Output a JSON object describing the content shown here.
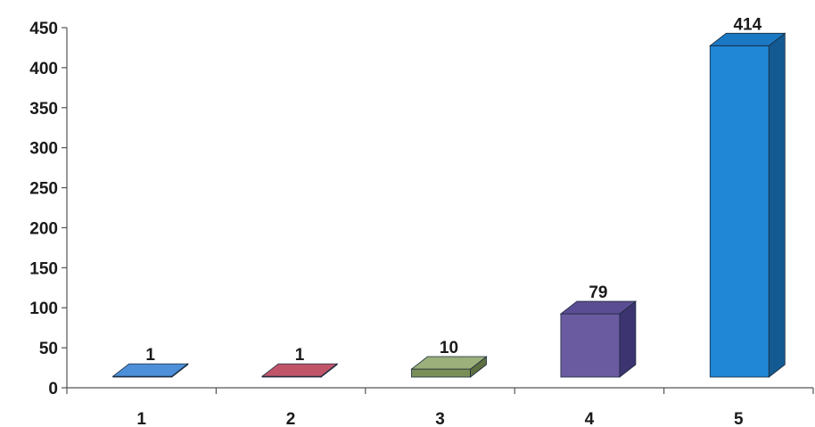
{
  "chart_data": {
    "type": "bar",
    "categories": [
      "1",
      "2",
      "3",
      "4",
      "5"
    ],
    "values": [
      1,
      1,
      10,
      79,
      414
    ],
    "data_labels": [
      "1",
      "1",
      "10",
      "79",
      "414"
    ],
    "y_ticks": [
      "0",
      "50",
      "100",
      "150",
      "200",
      "250",
      "300",
      "350",
      "400",
      "450"
    ],
    "ylim": [
      0,
      450
    ],
    "title": "",
    "xlabel": "",
    "ylabel": "",
    "grid": false,
    "legend": "none",
    "bar_colors": [
      "#2f6db8",
      "#a23a4f",
      "#7a8f58",
      "#6a5aa0",
      "#1f87d6"
    ],
    "bar_top_colors": [
      "#4d8fd8",
      "#c0556a",
      "#9bb07a",
      "#5b4d93",
      "#1b78c2"
    ],
    "bar_side_colors": [
      "#244f86",
      "#7a2536",
      "#5d6f40",
      "#3c3470",
      "#135a92"
    ],
    "three_d": true
  }
}
